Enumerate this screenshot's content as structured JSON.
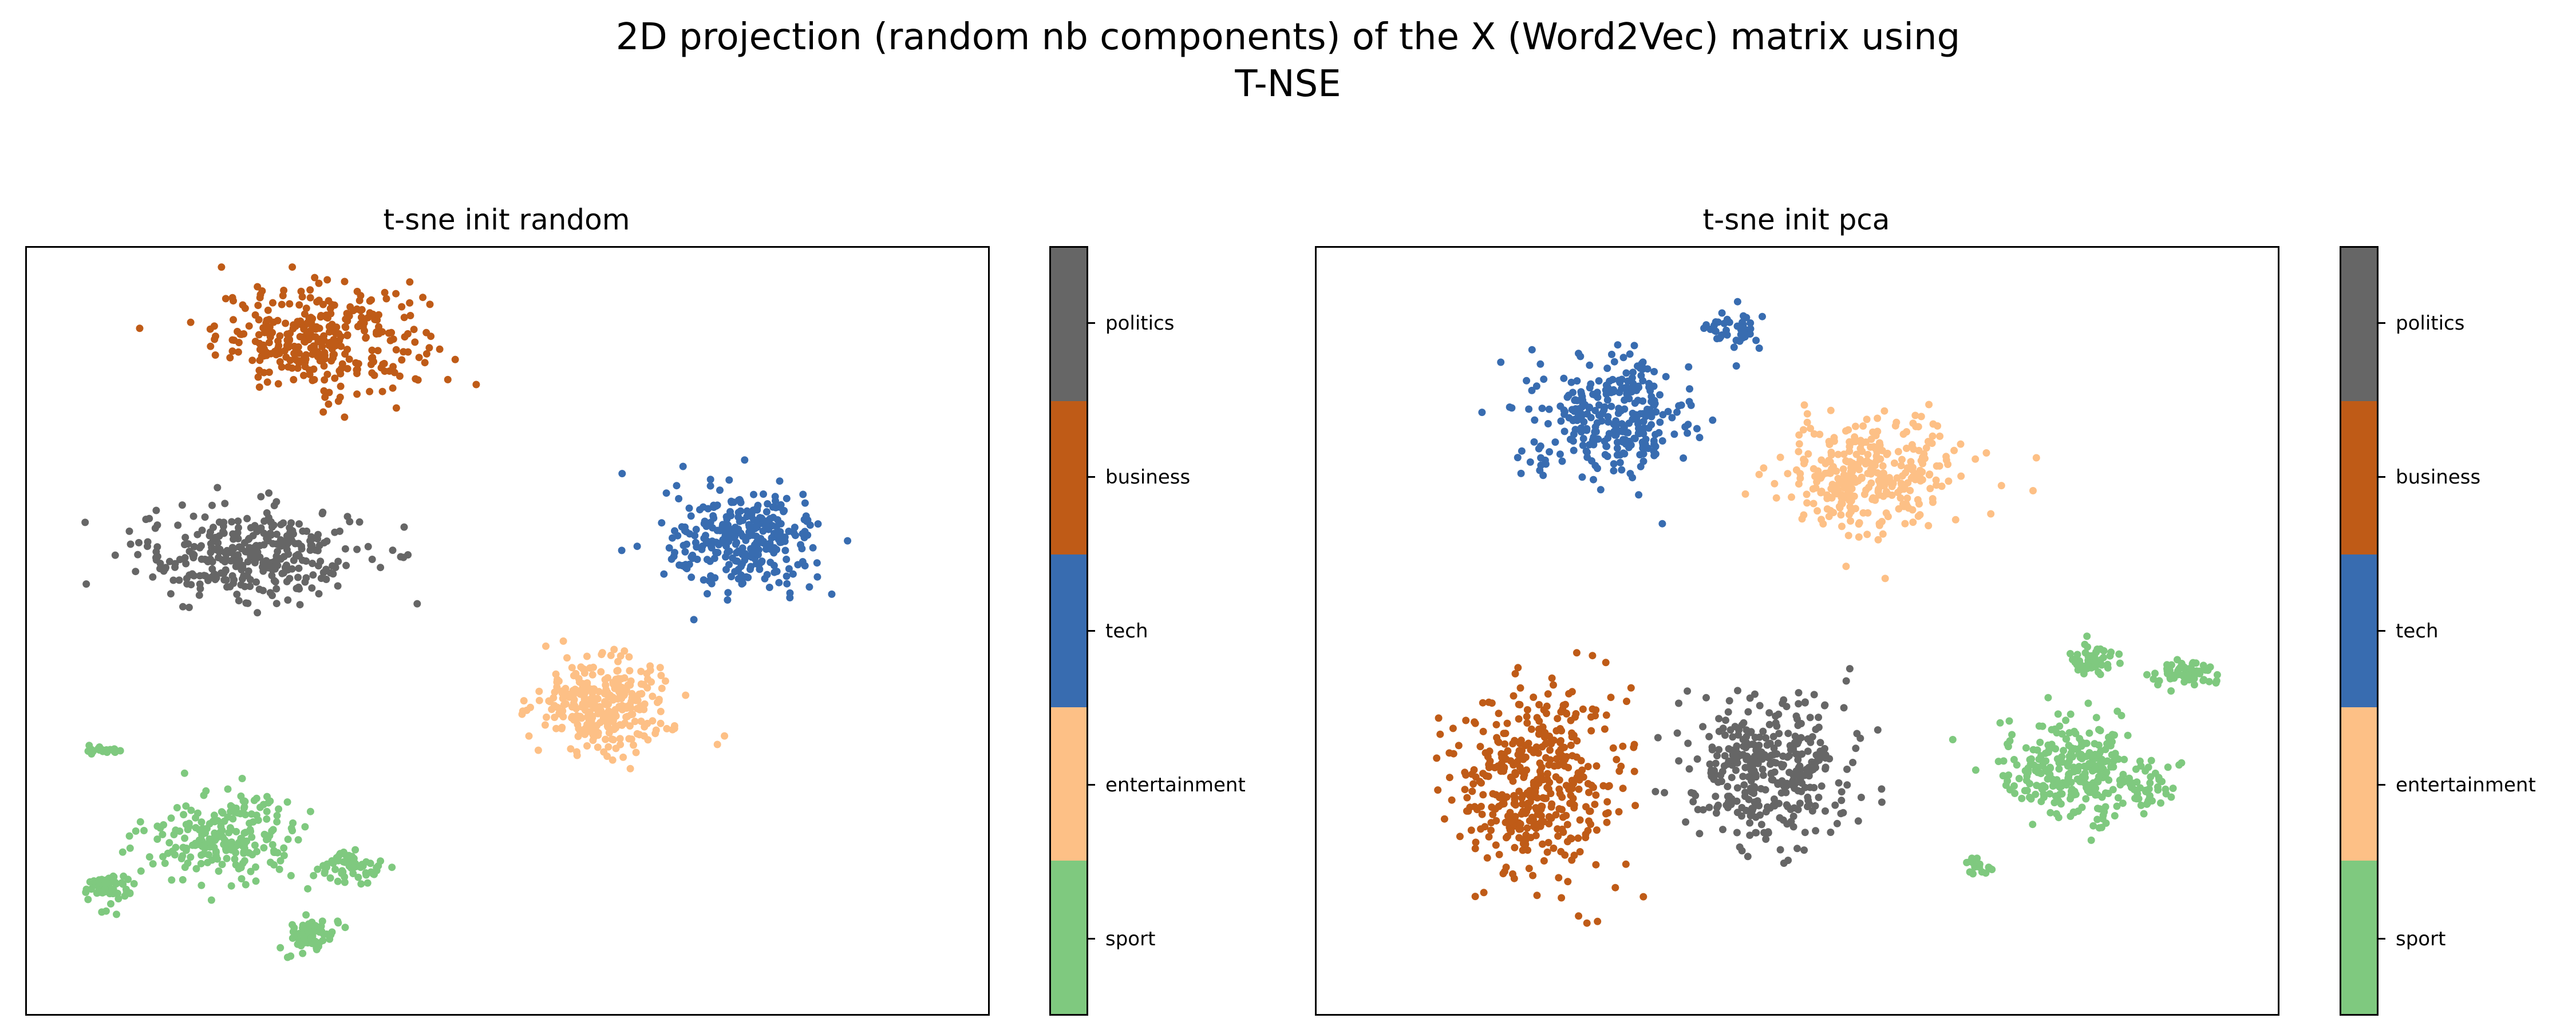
{
  "figure": {
    "title_line1": "2D projection (random nb components) of the X (Word2Vec) matrix using",
    "title_line2": "T-NSE"
  },
  "colors": {
    "sport": "#7fc97f",
    "entertainment": "#fdc086",
    "tech": "#386cb0",
    "business": "#bf5b17",
    "politics": "#666666"
  },
  "chart_data": [
    {
      "type": "scatter",
      "title": "t-sne init random",
      "xlabel": "",
      "ylabel": "",
      "axes_visible": false,
      "grid": false,
      "colorbar": {
        "labels_top_to_bottom": [
          "politics",
          "business",
          "tech",
          "entertainment",
          "sport"
        ],
        "placement": "right"
      },
      "clusters": [
        {
          "label": "business",
          "center": [
            -40,
            75
          ],
          "spread": [
            20,
            12
          ],
          "n": 330
        },
        {
          "label": "politics",
          "center": [
            -55,
            20
          ],
          "spread": [
            22,
            11
          ],
          "n": 330
        },
        {
          "label": "tech",
          "center": [
            50,
            23
          ],
          "spread": [
            15,
            12
          ],
          "n": 300
        },
        {
          "label": "entertainment",
          "center": [
            20,
            -18
          ],
          "spread": [
            13,
            11
          ],
          "n": 300
        },
        {
          "label": "sport",
          "center": [
            -60,
            -52
          ],
          "spread": [
            15,
            9
          ],
          "n": 220
        },
        {
          "label": "sport",
          "center": [
            -33,
            -60
          ],
          "spread": [
            6,
            4
          ],
          "n": 60
        },
        {
          "label": "sport",
          "center": [
            -42,
            -77
          ],
          "spread": [
            5,
            4
          ],
          "n": 70
        },
        {
          "label": "sport",
          "center": [
            -85,
            -65
          ],
          "spread": [
            5,
            4
          ],
          "n": 55
        },
        {
          "label": "sport",
          "center": [
            -86,
            -30
          ],
          "spread": [
            3,
            1.5
          ],
          "n": 20
        }
      ]
    },
    {
      "type": "scatter",
      "title": "t-sne init pca",
      "xlabel": "",
      "ylabel": "",
      "axes_visible": false,
      "grid": false,
      "colorbar": {
        "labels_top_to_bottom": [
          "politics",
          "business",
          "tech",
          "entertainment",
          "sport"
        ],
        "placement": "right"
      },
      "clusters": [
        {
          "label": "tech",
          "center": [
            -40,
            55
          ],
          "spread": [
            16,
            14
          ],
          "n": 300
        },
        {
          "label": "tech",
          "center": [
            -15,
            77
          ],
          "spread": [
            6,
            4
          ],
          "n": 40
        },
        {
          "label": "entertainment",
          "center": [
            15,
            40
          ],
          "spread": [
            17,
            13
          ],
          "n": 330
        },
        {
          "label": "business",
          "center": [
            -55,
            -38
          ],
          "spread": [
            16,
            22
          ],
          "n": 420
        },
        {
          "label": "politics",
          "center": [
            -7,
            -35
          ],
          "spread": [
            16,
            18
          ],
          "n": 360
        },
        {
          "label": "sport",
          "center": [
            58,
            -35
          ],
          "spread": [
            14,
            12
          ],
          "n": 280
        },
        {
          "label": "sport",
          "center": [
            62,
            -7
          ],
          "spread": [
            4,
            4
          ],
          "n": 50
        },
        {
          "label": "sport",
          "center": [
            82,
            -10
          ],
          "spread": [
            6,
            3
          ],
          "n": 60
        },
        {
          "label": "sport",
          "center": [
            74,
            -40
          ],
          "spread": [
            4,
            6
          ],
          "n": 40
        },
        {
          "label": "sport",
          "center": [
            38,
            -60
          ],
          "spread": [
            2,
            2
          ],
          "n": 15
        }
      ]
    }
  ]
}
